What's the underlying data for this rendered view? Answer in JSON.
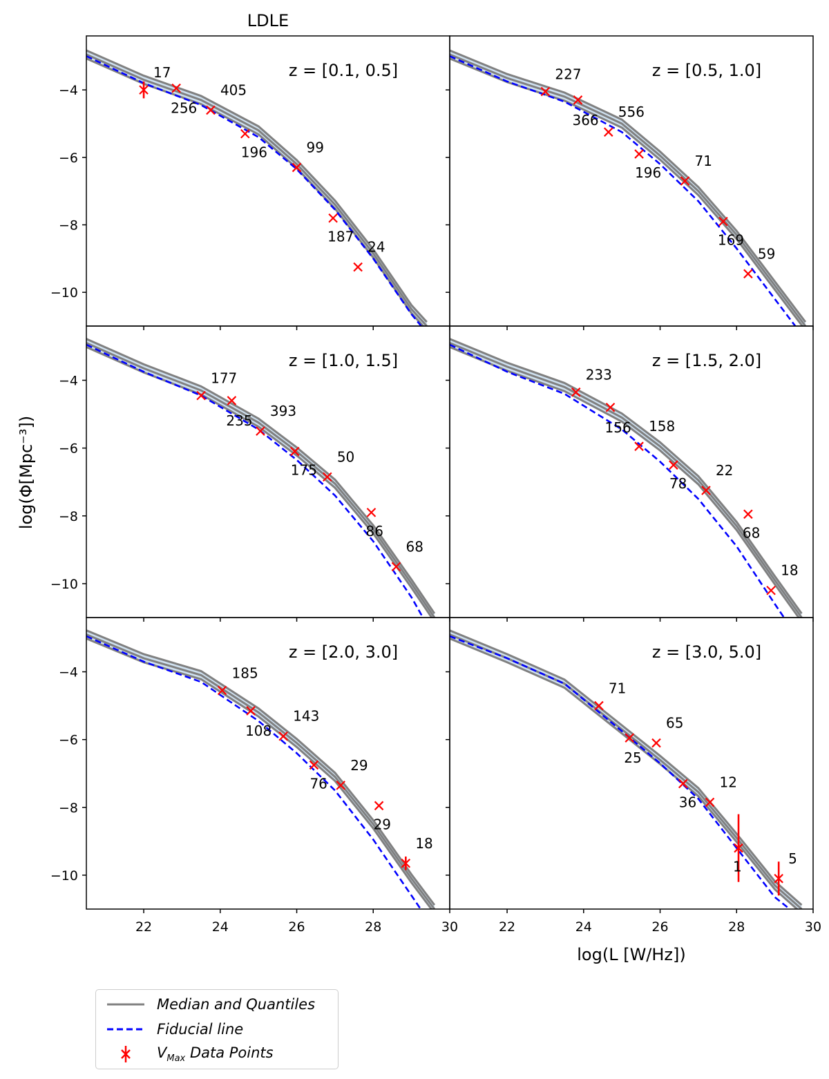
{
  "figure": {
    "title": "LDLE",
    "xlabel": "log(L [W/Hz])",
    "ylabel": "log(Φ[Mpc⁻³])"
  },
  "legend": {
    "entries": [
      {
        "label": "Median and Quantiles",
        "style": "solid",
        "color": "#808080"
      },
      {
        "label": "Fiducial line",
        "style": "dashed",
        "color": "#0000ff"
      },
      {
        "label": "V_Max Data Points",
        "style": "errorbar-x",
        "color": "#ff0000"
      }
    ]
  },
  "colors": {
    "median": "#808080",
    "fiducial": "#0000ff",
    "points": "#ff0000",
    "band": "#cfe1f0"
  },
  "chart_data": [
    {
      "type": "line",
      "panel": "top-left",
      "label": "z = [0.1, 0.5]",
      "xlim": [
        20.5,
        30
      ],
      "ylim": [
        -11,
        -2.4
      ],
      "xticks": [
        22,
        24,
        26,
        28,
        30
      ],
      "yticks": [
        -4,
        -6,
        -8,
        -10
      ],
      "median": {
        "x": [
          20.5,
          22,
          23.5,
          25,
          26,
          27,
          28,
          29,
          29.4
        ],
        "y": [
          -2.95,
          -3.7,
          -4.3,
          -5.2,
          -6.2,
          -7.4,
          -8.85,
          -10.5,
          -11.0
        ]
      },
      "fiducial": {
        "x": [
          20.5,
          22,
          23.5,
          25,
          26,
          27,
          28,
          29,
          29.4
        ],
        "y": [
          -3.0,
          -3.8,
          -4.45,
          -5.4,
          -6.35,
          -7.55,
          -9.0,
          -10.65,
          -11.2
        ]
      },
      "points": [
        {
          "x": 22.0,
          "y": -4.0,
          "yerr": 0.25,
          "n": "17"
        },
        {
          "x": 22.85,
          "y": -3.95,
          "n": "256"
        },
        {
          "x": 23.75,
          "y": -4.6,
          "n": "405"
        },
        {
          "x": 24.65,
          "y": -5.3,
          "n": "196"
        },
        {
          "x": 26.0,
          "y": -6.3,
          "n": "99"
        },
        {
          "x": 26.95,
          "y": -7.8,
          "n": "187"
        },
        {
          "x": 27.6,
          "y": -9.25,
          "n": "24"
        }
      ]
    },
    {
      "type": "line",
      "panel": "top-right",
      "label": "z = [0.5, 1.0]",
      "xlim": [
        20.5,
        30
      ],
      "ylim": [
        -11,
        -2.4
      ],
      "xticks": [
        22,
        24,
        26,
        28,
        30
      ],
      "yticks": [
        -4,
        -6,
        -8,
        -10
      ],
      "median": {
        "x": [
          20.5,
          22,
          23.5,
          25,
          26,
          27,
          28,
          29,
          29.8
        ],
        "y": [
          -2.95,
          -3.65,
          -4.2,
          -5.0,
          -5.95,
          -7.0,
          -8.3,
          -9.8,
          -11.0
        ]
      },
      "fiducial": {
        "x": [
          20.5,
          22,
          23.5,
          25,
          26,
          27,
          28,
          29,
          29.6
        ],
        "y": [
          -3.0,
          -3.75,
          -4.35,
          -5.25,
          -6.2,
          -7.3,
          -8.7,
          -10.2,
          -11.1
        ]
      },
      "points": [
        {
          "x": 23.0,
          "y": -4.05,
          "n": "227"
        },
        {
          "x": 23.85,
          "y": -4.3,
          "n": "366"
        },
        {
          "x": 24.65,
          "y": -5.25,
          "n": "556"
        },
        {
          "x": 25.45,
          "y": -5.9,
          "n": "196"
        },
        {
          "x": 26.65,
          "y": -6.7,
          "n": "71"
        },
        {
          "x": 27.65,
          "y": -7.9,
          "n": "169"
        },
        {
          "x": 28.3,
          "y": -9.45,
          "n": "59"
        }
      ]
    },
    {
      "type": "line",
      "panel": "middle-left",
      "label": "z = [1.0, 1.5]",
      "xlim": [
        20.5,
        30
      ],
      "ylim": [
        -11,
        -2.4
      ],
      "xticks": [
        22,
        24,
        26,
        28,
        30
      ],
      "yticks": [
        -4,
        -6,
        -8,
        -10
      ],
      "median": {
        "x": [
          20.5,
          22,
          23.5,
          25,
          26,
          27,
          28,
          29,
          29.6
        ],
        "y": [
          -2.9,
          -3.65,
          -4.3,
          -5.25,
          -6.1,
          -7.05,
          -8.4,
          -10.0,
          -11.0
        ]
      },
      "fiducial": {
        "x": [
          20.5,
          22,
          23.5,
          25,
          26,
          27,
          28,
          29,
          29.3
        ],
        "y": [
          -2.95,
          -3.75,
          -4.45,
          -5.45,
          -6.35,
          -7.4,
          -8.75,
          -10.4,
          -11.0
        ]
      },
      "points": [
        {
          "x": 23.5,
          "y": -4.45,
          "n": "177"
        },
        {
          "x": 24.3,
          "y": -4.6,
          "n": "235"
        },
        {
          "x": 25.05,
          "y": -5.5,
          "n": "393"
        },
        {
          "x": 25.95,
          "y": -6.1,
          "n": "175"
        },
        {
          "x": 26.8,
          "y": -6.85,
          "n": "50"
        },
        {
          "x": 27.95,
          "y": -7.9,
          "n": "86"
        },
        {
          "x": 28.6,
          "y": -9.5,
          "n": "68"
        }
      ]
    },
    {
      "type": "line",
      "panel": "middle-right",
      "label": "z = [1.5, 2.0]",
      "xlim": [
        20.5,
        30
      ],
      "ylim": [
        -11,
        -2.4
      ],
      "xticks": [
        22,
        24,
        26,
        28,
        30
      ],
      "yticks": [
        -4,
        -6,
        -8,
        -10
      ],
      "median": {
        "x": [
          20.5,
          22,
          23.5,
          25,
          26,
          27,
          28,
          29,
          29.7
        ],
        "y": [
          -2.9,
          -3.6,
          -4.2,
          -5.1,
          -5.95,
          -6.95,
          -8.3,
          -9.9,
          -11.0
        ]
      },
      "fiducial": {
        "x": [
          20.5,
          22,
          23.5,
          25,
          26,
          27,
          28,
          29,
          29.3
        ],
        "y": [
          -2.95,
          -3.75,
          -4.4,
          -5.45,
          -6.4,
          -7.5,
          -8.9,
          -10.6,
          -11.1
        ]
      },
      "points": [
        {
          "x": 23.8,
          "y": -4.35,
          "n": "233"
        },
        {
          "x": 24.7,
          "y": -4.8,
          "n": "156"
        },
        {
          "x": 25.45,
          "y": -5.95,
          "n": "158"
        },
        {
          "x": 26.35,
          "y": -6.5,
          "n": "78"
        },
        {
          "x": 27.2,
          "y": -7.25,
          "n": "22"
        },
        {
          "x": 28.3,
          "y": -7.95,
          "n": "68"
        },
        {
          "x": 28.9,
          "y": -10.2,
          "n": "18"
        }
      ]
    },
    {
      "type": "line",
      "panel": "bottom-left",
      "label": "z = [2.0, 3.0]",
      "xlim": [
        20.5,
        30
      ],
      "ylim": [
        -11,
        -2.4
      ],
      "xticks": [
        22,
        24,
        26,
        28,
        30
      ],
      "yticks": [
        -4,
        -6,
        -8,
        -10
      ],
      "median": {
        "x": [
          20.5,
          22,
          23.5,
          25,
          26,
          27,
          28,
          29,
          29.6
        ],
        "y": [
          -2.9,
          -3.6,
          -4.1,
          -5.2,
          -6.1,
          -7.1,
          -8.5,
          -10.1,
          -11.0
        ]
      },
      "fiducial": {
        "x": [
          20.5,
          22,
          23.5,
          25,
          26,
          27,
          28,
          29,
          29.3
        ],
        "y": [
          -2.95,
          -3.7,
          -4.3,
          -5.45,
          -6.4,
          -7.5,
          -8.95,
          -10.6,
          -11.1
        ]
      },
      "points": [
        {
          "x": 24.05,
          "y": -4.55,
          "n": "185"
        },
        {
          "x": 24.8,
          "y": -5.15,
          "n": "108"
        },
        {
          "x": 25.65,
          "y": -5.9,
          "n": "143"
        },
        {
          "x": 26.45,
          "y": -6.75,
          "n": "76"
        },
        {
          "x": 27.15,
          "y": -7.35,
          "n": "29"
        },
        {
          "x": 28.15,
          "y": -7.95,
          "n": "29"
        },
        {
          "x": 28.85,
          "y": -9.65,
          "yerr": 0.2,
          "n": "18"
        }
      ]
    },
    {
      "type": "line",
      "panel": "bottom-right",
      "label": "z = [3.0, 5.0]",
      "xlim": [
        20.5,
        30
      ],
      "ylim": [
        -11,
        -2.4
      ],
      "xticks": [
        22,
        24,
        26,
        28,
        30
      ],
      "yticks": [
        -4,
        -6,
        -8,
        -10
      ],
      "median": {
        "x": [
          20.5,
          22,
          23.5,
          25,
          26,
          27,
          28,
          29,
          29.7
        ],
        "y": [
          -2.9,
          -3.6,
          -4.35,
          -5.7,
          -6.6,
          -7.55,
          -8.9,
          -10.3,
          -11.0
        ]
      },
      "fiducial": {
        "x": [
          20.5,
          22,
          23.5,
          25,
          26,
          27,
          28,
          29,
          29.5
        ],
        "y": [
          -2.95,
          -3.6,
          -4.35,
          -5.75,
          -6.7,
          -7.75,
          -9.2,
          -10.65,
          -11.1
        ]
      },
      "points": [
        {
          "x": 24.4,
          "y": -5.0,
          "n": "71"
        },
        {
          "x": 25.2,
          "y": -5.95,
          "n": "25"
        },
        {
          "x": 25.9,
          "y": -6.1,
          "n": "65"
        },
        {
          "x": 26.6,
          "y": -7.3,
          "n": "36"
        },
        {
          "x": 27.3,
          "y": -7.85,
          "n": "12"
        },
        {
          "x": 28.05,
          "y": -9.2,
          "yerr": 1.0,
          "n": "1"
        },
        {
          "x": 29.1,
          "y": -10.1,
          "yerr": 0.5,
          "n": "5"
        }
      ]
    }
  ]
}
